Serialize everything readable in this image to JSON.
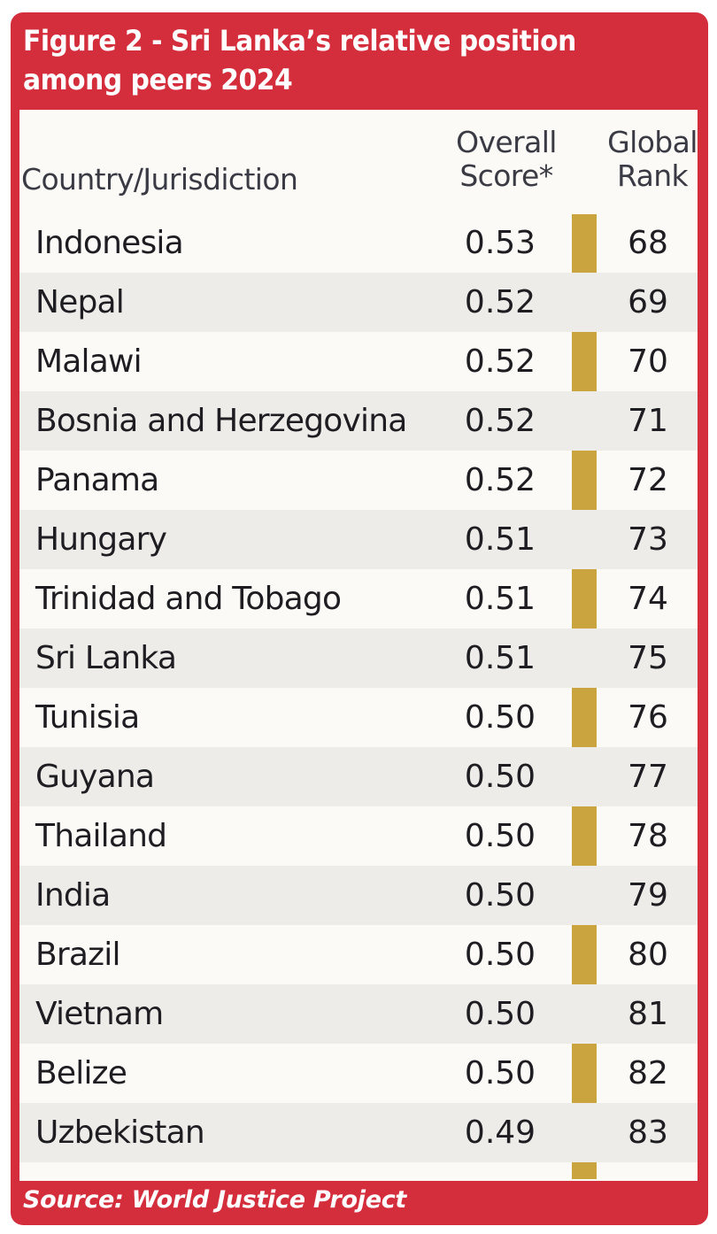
{
  "figure": {
    "title": "Figure 2 - Sri Lanka’s relative position among peers 2024",
    "source": "Source: World Justice Project",
    "colors": {
      "frame": "#d42e3c",
      "highlight_bar": "#c9a43f",
      "panel": "#fbfaf6",
      "stripe": "#eeece8"
    }
  },
  "chart_data": {
    "type": "table",
    "title": "Figure 2 - Sri Lanka’s relative position among peers 2024",
    "columns": [
      "Country/Jurisdiction",
      "Overall Score*",
      "Global Rank"
    ],
    "rows": [
      {
        "country": "Indonesia",
        "score": "0.53",
        "rank": "68"
      },
      {
        "country": "Nepal",
        "score": "0.52",
        "rank": "69"
      },
      {
        "country": "Malawi",
        "score": "0.52",
        "rank": "70"
      },
      {
        "country": "Bosnia and Herzegovina",
        "score": "0.52",
        "rank": "71"
      },
      {
        "country": "Panama",
        "score": "0.52",
        "rank": "72"
      },
      {
        "country": "Hungary",
        "score": "0.51",
        "rank": "73"
      },
      {
        "country": "Trinidad and Tobago",
        "score": "0.51",
        "rank": "74"
      },
      {
        "country": "Sri Lanka",
        "score": "0.51",
        "rank": "75"
      },
      {
        "country": "Tunisia",
        "score": "0.50",
        "rank": "76"
      },
      {
        "country": "Guyana",
        "score": "0.50",
        "rank": "77"
      },
      {
        "country": "Thailand",
        "score": "0.50",
        "rank": "78"
      },
      {
        "country": "India",
        "score": "0.50",
        "rank": "79"
      },
      {
        "country": "Brazil",
        "score": "0.50",
        "rank": "80"
      },
      {
        "country": "Vietnam",
        "score": "0.50",
        "rank": "81"
      },
      {
        "country": "Belize",
        "score": "0.50",
        "rank": "82"
      },
      {
        "country": "Uzbekistan",
        "score": "0.49",
        "rank": "83"
      }
    ]
  }
}
